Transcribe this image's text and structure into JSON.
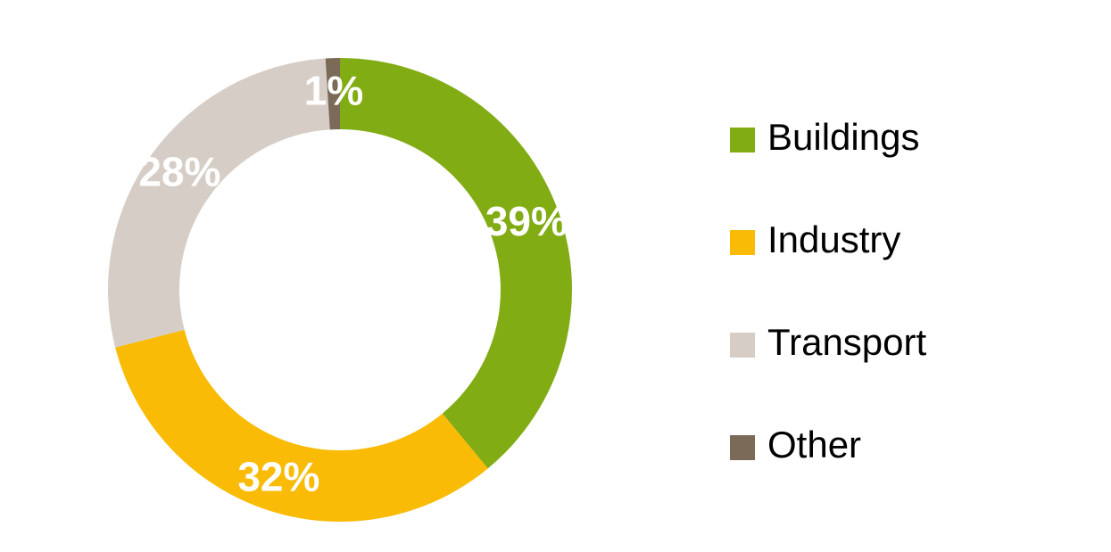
{
  "chart_data": {
    "type": "donut",
    "categories": [
      "Buildings",
      "Industry",
      "Transport",
      "Other"
    ],
    "values": [
      39,
      32,
      28,
      1
    ],
    "value_labels": [
      "39%",
      "32%",
      "28%",
      "1%"
    ],
    "colors": [
      "#82ac13",
      "#f9bb05",
      "#d6cec6",
      "#7b6a58"
    ],
    "legend": "right"
  }
}
